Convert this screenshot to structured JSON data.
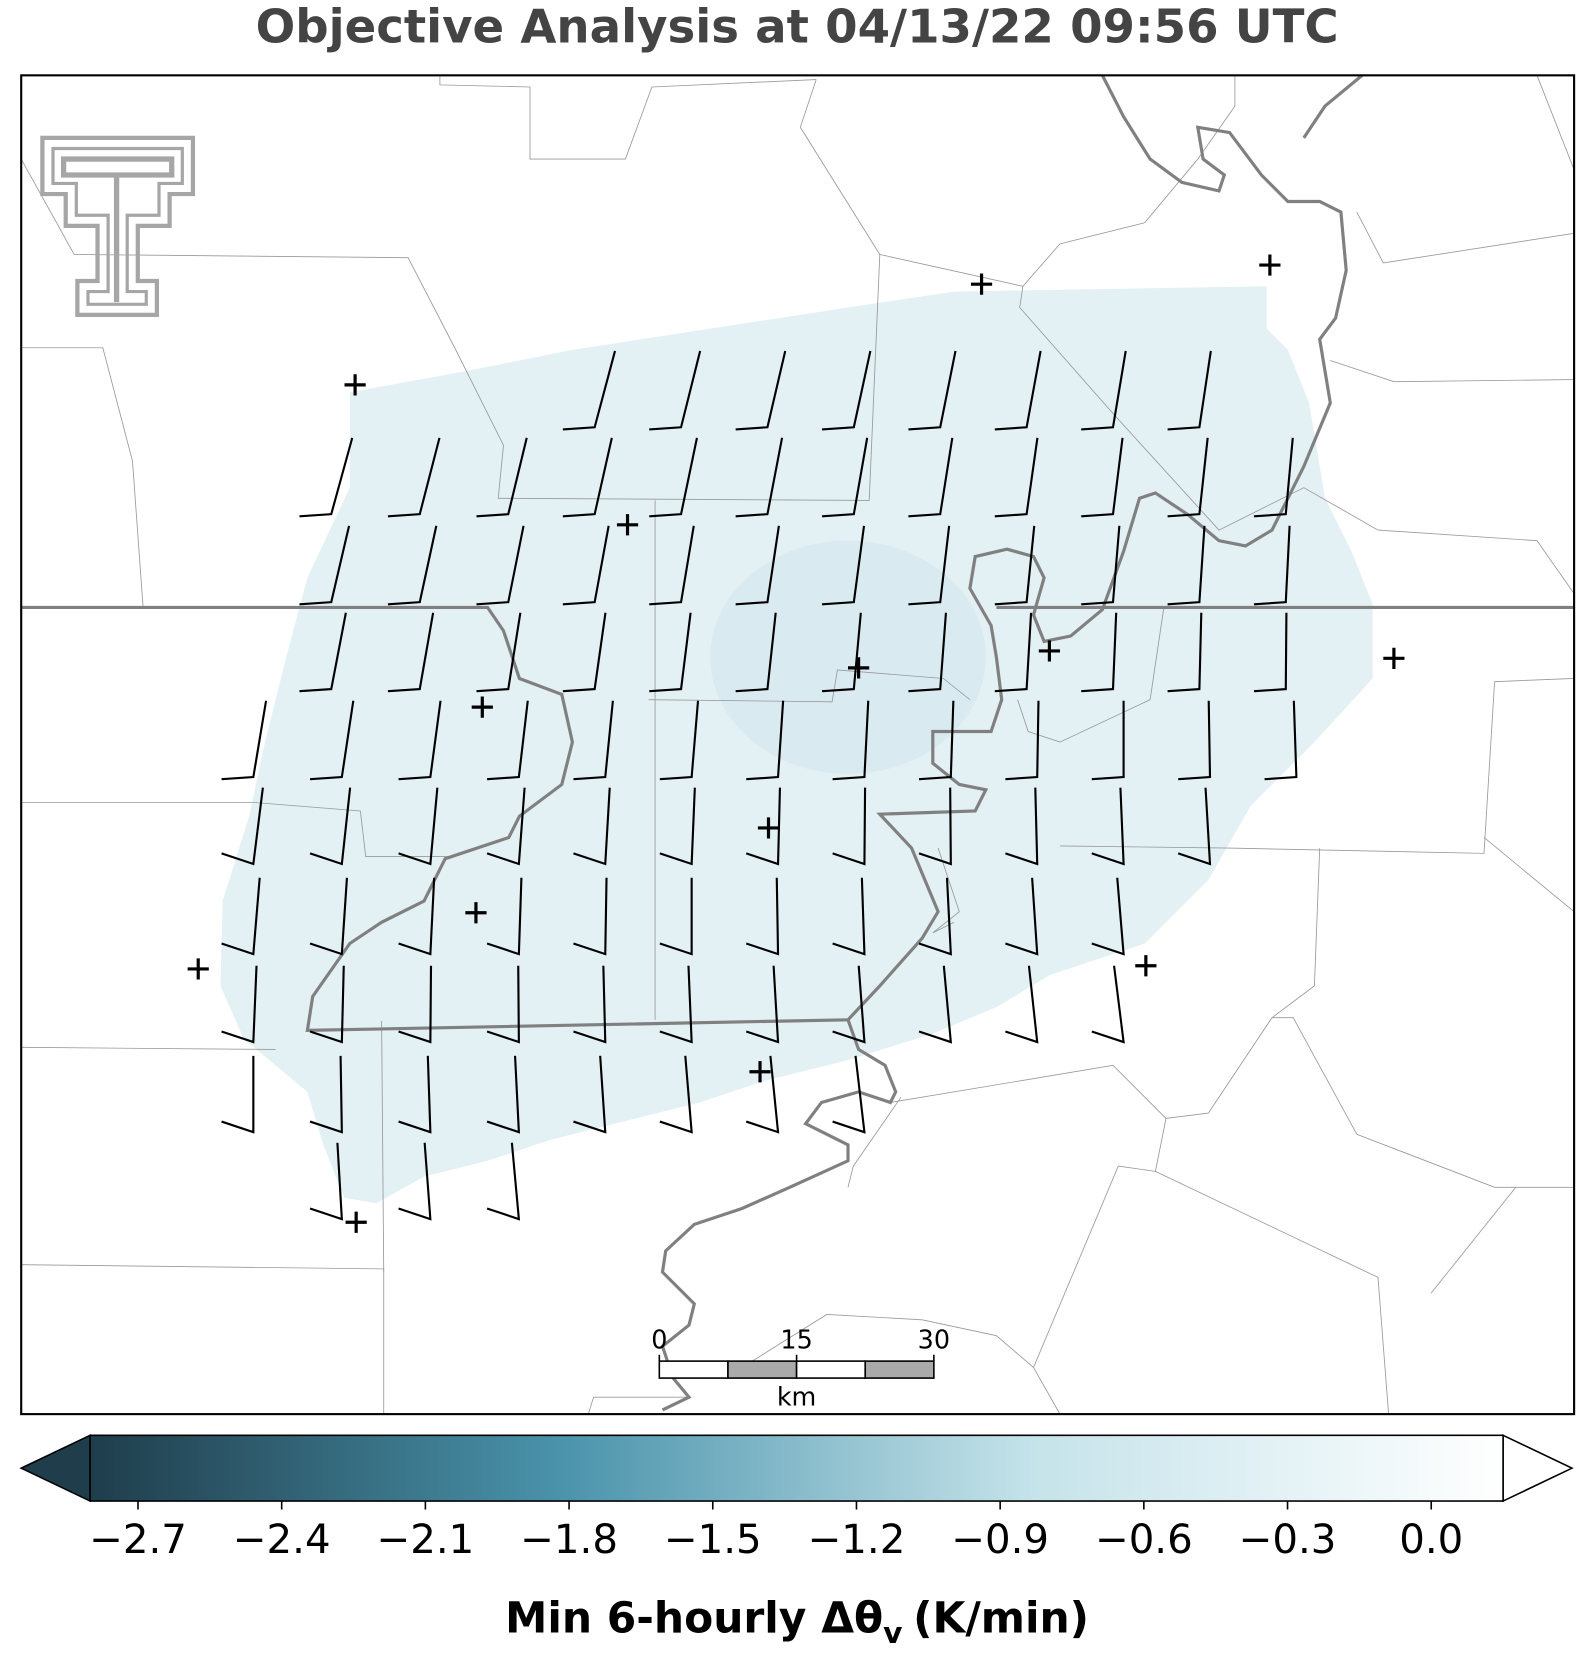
{
  "title": "Objective Analysis at 04/13/22 09:56 UTC",
  "colorbar": {
    "label_main": "Min 6-hourly Δθ",
    "label_sub": "v",
    "label_unit": "(K/min)",
    "vlim": [
      -2.8,
      0.15
    ],
    "ticks": [
      {
        "value": -2.7,
        "label": "−2.7"
      },
      {
        "value": -2.4,
        "label": "−2.4"
      },
      {
        "value": -2.1,
        "label": "−2.1"
      },
      {
        "value": -1.8,
        "label": "−1.8"
      },
      {
        "value": -1.5,
        "label": "−1.5"
      },
      {
        "value": -1.2,
        "label": "−1.2"
      },
      {
        "value": -0.9,
        "label": "−0.9"
      },
      {
        "value": -0.6,
        "label": "−0.6"
      },
      {
        "value": -0.3,
        "label": "−0.3"
      },
      {
        "value": 0.0,
        "label": "0.0"
      }
    ],
    "colors": [
      "#1f3d4b",
      "#4a93ab",
      "#c5e3ea",
      "#ffffff"
    ]
  },
  "scale_bar": {
    "ticks": [
      0,
      15,
      30
    ],
    "unit": "km"
  }
}
